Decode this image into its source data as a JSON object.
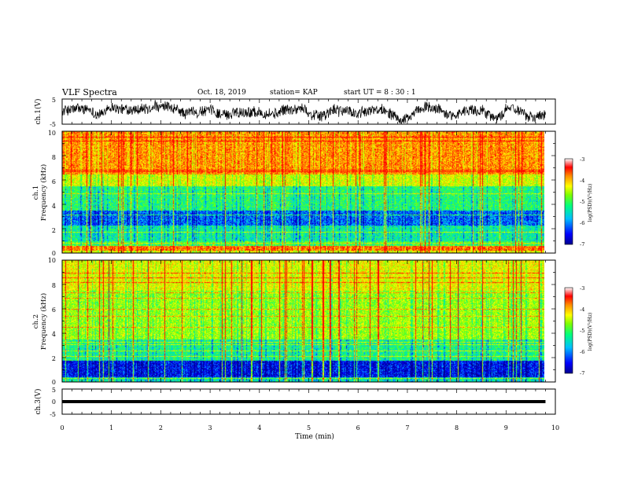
{
  "header": {
    "title": "VLF Spectra",
    "date": "Oct. 18, 2019",
    "station": "station= KAP",
    "start": "start  UT =   8  : 30 : 1"
  },
  "chart_data": [
    {
      "panel": "ch1-waveform",
      "type": "line",
      "ylabel": "ch.1(V)",
      "ylim": [
        -5,
        5
      ],
      "yticks": [
        "5",
        "-5"
      ],
      "xlim": [
        0,
        10
      ],
      "grid": false
    },
    {
      "panel": "ch1-spectrogram",
      "type": "heatmap",
      "ylabel_line1": "ch.1",
      "ylabel_line2": "Frequency  (kHz)",
      "ylim": [
        0,
        10
      ],
      "yticks": [
        "0",
        "2",
        "4",
        "6",
        "8",
        "10"
      ],
      "xlim": [
        0,
        9.8
      ],
      "colorbar": {
        "label": "log(PSD)(V²/Hz)",
        "range": [
          -7,
          -3
        ],
        "ticks": [
          "-3",
          "-4",
          "-5",
          "-6",
          "-7"
        ]
      },
      "bands": [
        {
          "f": [
            0,
            0.2
          ],
          "level": -4.2
        },
        {
          "f": [
            0.2,
            0.6
          ],
          "level": -3.4
        },
        {
          "f": [
            0.6,
            1.0
          ],
          "level": -5.0
        },
        {
          "f": [
            1.0,
            2.3
          ],
          "level": -5.4
        },
        {
          "f": [
            2.3,
            3.5
          ],
          "level": -6.1
        },
        {
          "f": [
            3.5,
            5.5
          ],
          "level": -5.2
        },
        {
          "f": [
            5.5,
            6.5
          ],
          "level": -4.3
        },
        {
          "f": [
            6.5,
            10.0
          ],
          "level": -3.6
        }
      ]
    },
    {
      "panel": "ch2-spectrogram",
      "type": "heatmap",
      "ylabel_line1": "ch.2",
      "ylabel_line2": "Frequency  (kHz)",
      "ylim": [
        0,
        10
      ],
      "yticks": [
        "0",
        "2",
        "4",
        "6",
        "8",
        "10"
      ],
      "xlim": [
        0,
        9.8
      ],
      "colorbar": {
        "label": "log(PSD)(V²/Hz)",
        "range": [
          -7,
          -3
        ],
        "ticks": [
          "-3",
          "-4",
          "-5",
          "-6",
          "-7"
        ]
      },
      "bands": [
        {
          "f": [
            0,
            0.4
          ],
          "level": -5.5
        },
        {
          "f": [
            0.4,
            1.8
          ],
          "level": -6.5
        },
        {
          "f": [
            1.8,
            3.5
          ],
          "level": -5.3
        },
        {
          "f": [
            3.5,
            7.5
          ],
          "level": -4.6
        },
        {
          "f": [
            7.5,
            10.0
          ],
          "level": -4.2
        }
      ]
    },
    {
      "panel": "ch3-waveform",
      "type": "line",
      "ylabel": "ch.3(V)",
      "ylim": [
        -5,
        5
      ],
      "yticks": [
        "5",
        "0",
        "-5"
      ],
      "xlim": [
        0,
        9.8
      ],
      "x": [
        0,
        9.8
      ],
      "y": [
        0,
        0
      ],
      "xlabel": "Time  (min)",
      "xticks": [
        "0",
        "1",
        "2",
        "3",
        "4",
        "5",
        "6",
        "7",
        "8",
        "9",
        "10"
      ]
    }
  ],
  "colors": {
    "colormap": [
      "#00008f",
      "#0000ff",
      "#00bfff",
      "#00ff7f",
      "#7fff00",
      "#ffff00",
      "#ff8c00",
      "#ff0000",
      "#ffffff"
    ],
    "axis": "#000000",
    "trace": "#000000"
  }
}
